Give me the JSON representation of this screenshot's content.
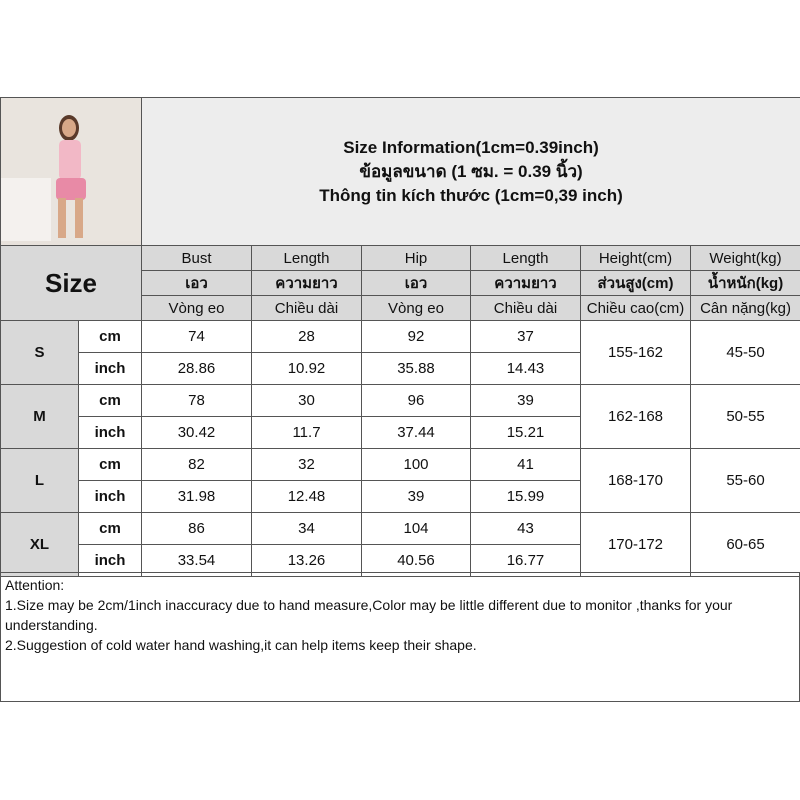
{
  "title": {
    "line1": "Size Information(1cm=0.39inch)",
    "line2": "ข้อมูลขนาด (1 ซม. = 0.39 นิ้ว)",
    "line3": "Thông tin kích thước (1cm=0,39 inch)"
  },
  "size_label": "Size",
  "headers": [
    [
      "Bust",
      "Length",
      "Hip",
      "Length",
      "Height(cm)",
      "Weight(kg)"
    ],
    [
      "เอว",
      "ความยาว",
      "เอว",
      "ความยาว",
      "ส่วนสูง(cm)",
      "น้ำหนัก(kg)"
    ],
    [
      "Vòng eo",
      "Chiều dài",
      "Vòng eo",
      "Chiều dài",
      "Chiều cao(cm)",
      "Cân nặng(kg)"
    ]
  ],
  "units": {
    "cm": "cm",
    "inch": "inch"
  },
  "rows": [
    {
      "size": "S",
      "cm": [
        "74",
        "28",
        "92",
        "37"
      ],
      "inch": [
        "28.86",
        "10.92",
        "35.88",
        "14.43"
      ],
      "height": "155-162",
      "weight": "45-50"
    },
    {
      "size": "M",
      "cm": [
        "78",
        "30",
        "96",
        "39"
      ],
      "inch": [
        "30.42",
        "11.7",
        "37.44",
        "15.21"
      ],
      "height": "162-168",
      "weight": "50-55"
    },
    {
      "size": "L",
      "cm": [
        "82",
        "32",
        "100",
        "41"
      ],
      "inch": [
        "31.98",
        "12.48",
        "39",
        "15.99"
      ],
      "height": "168-170",
      "weight": "55-60"
    },
    {
      "size": "XL",
      "cm": [
        "86",
        "34",
        "104",
        "43"
      ],
      "inch": [
        "33.54",
        "13.26",
        "40.56",
        "16.77"
      ],
      "height": "170-172",
      "weight": "60-65"
    }
  ],
  "attention": {
    "heading": "Attention:",
    "note1": "1.Size may be 2cm/1inch inaccuracy due to hand measure,Color may be little different due to monitor ,thanks for your understanding.",
    "note2": "2.Suggestion of cold water hand washing,it can help items keep their shape."
  }
}
